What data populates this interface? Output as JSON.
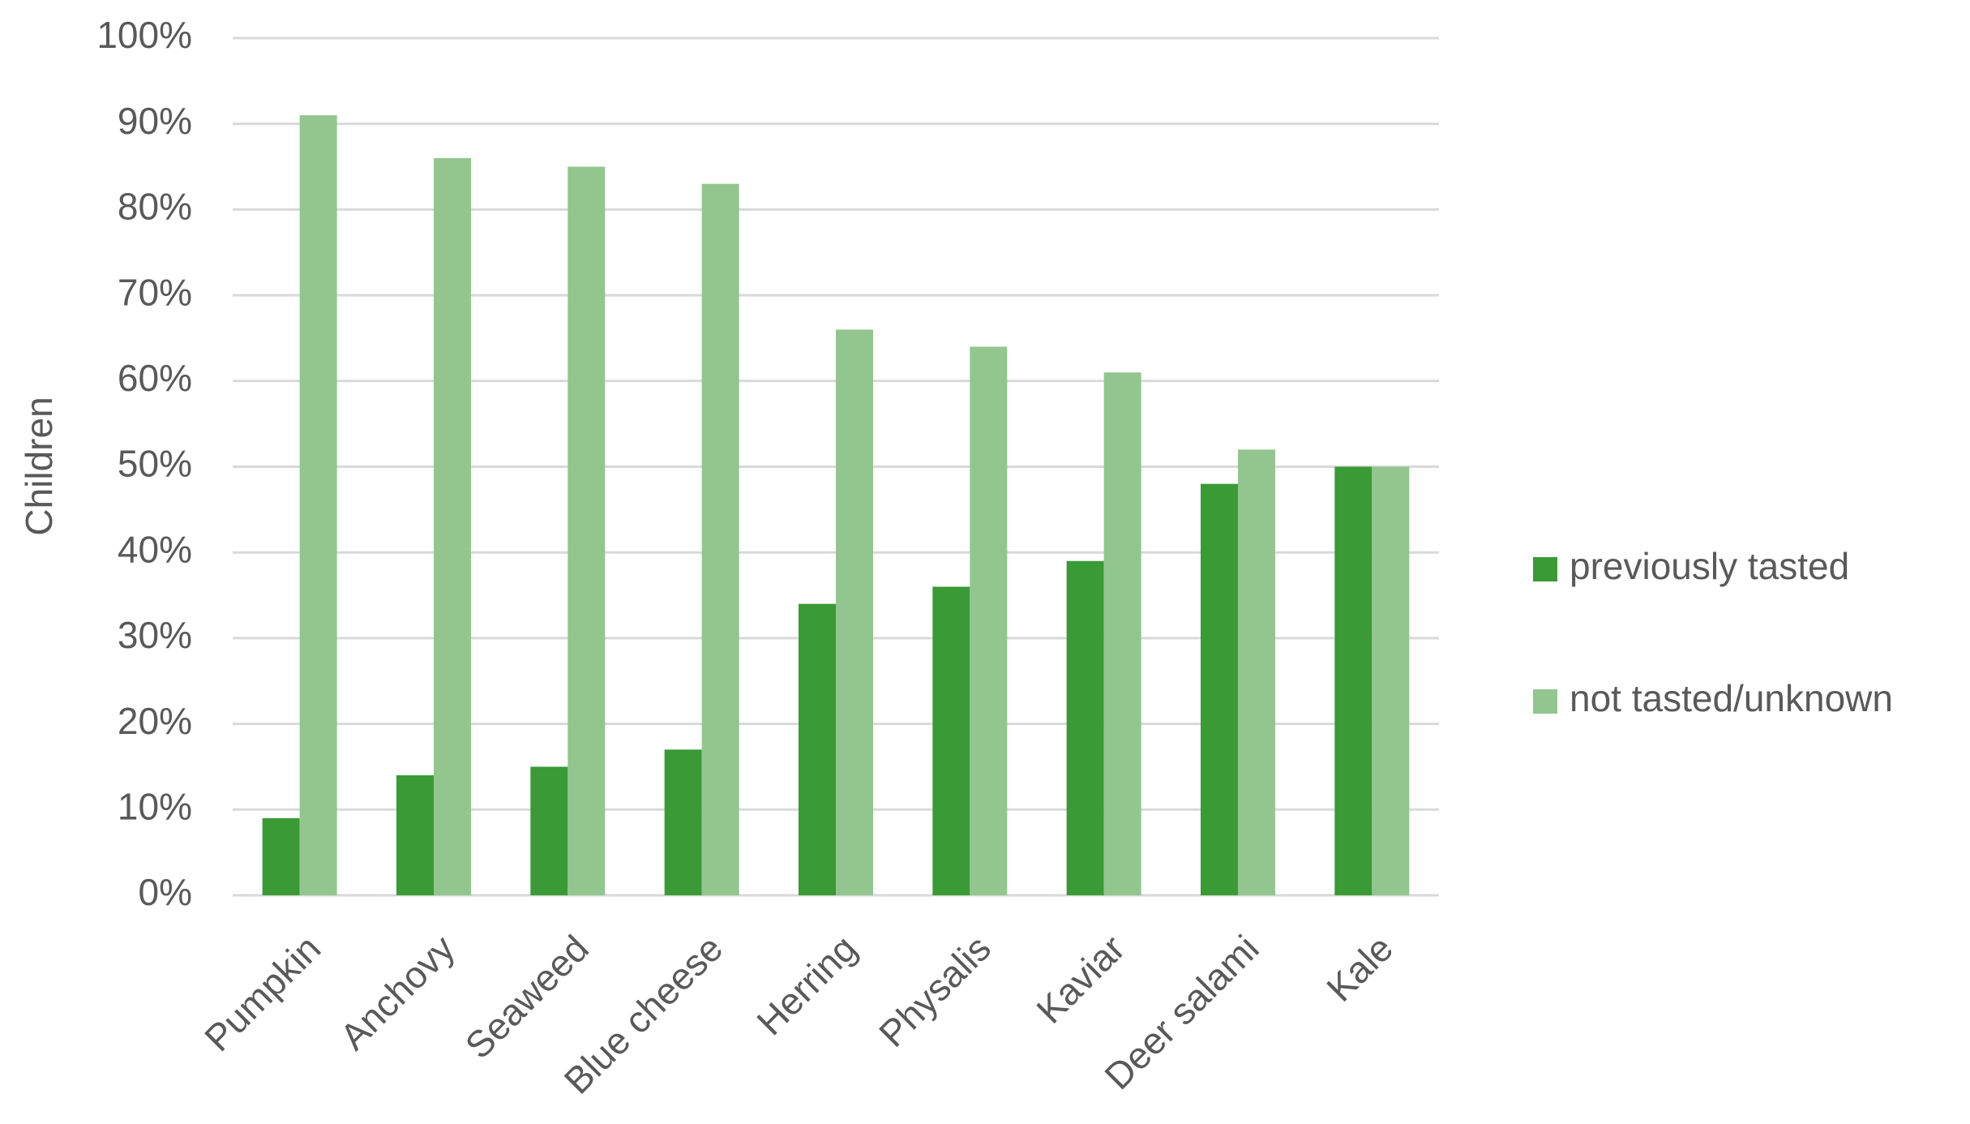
{
  "chart_data": {
    "type": "bar",
    "y_label": "Children",
    "categories": [
      "Pumpkin",
      "Anchovy",
      "Seaweed",
      "Blue cheese",
      "Herring",
      "Physalis",
      "Kaviar",
      "Deer salami",
      "Kale"
    ],
    "series": [
      {
        "name": "previously tasted",
        "color": "#3a9a35",
        "values": [
          9,
          14,
          15,
          17,
          34,
          36,
          39,
          48,
          50
        ]
      },
      {
        "name": "not tasted/unknown",
        "color": "#93c68f",
        "values": [
          91,
          86,
          85,
          83,
          66,
          64,
          61,
          52,
          50
        ]
      }
    ],
    "ylim": [
      0,
      100
    ],
    "yticks": [
      {
        "value": 0,
        "label": "0%"
      },
      {
        "value": 10,
        "label": "10%"
      },
      {
        "value": 20,
        "label": "20%"
      },
      {
        "value": 30,
        "label": "30%"
      },
      {
        "value": 40,
        "label": "40%"
      },
      {
        "value": 50,
        "label": "50%"
      },
      {
        "value": 60,
        "label": "60%"
      },
      {
        "value": 70,
        "label": "70%"
      },
      {
        "value": 80,
        "label": "80%"
      },
      {
        "value": 90,
        "label": "90%"
      },
      {
        "value": 100,
        "label": "100%"
      }
    ],
    "grid": true,
    "legend": "right"
  }
}
